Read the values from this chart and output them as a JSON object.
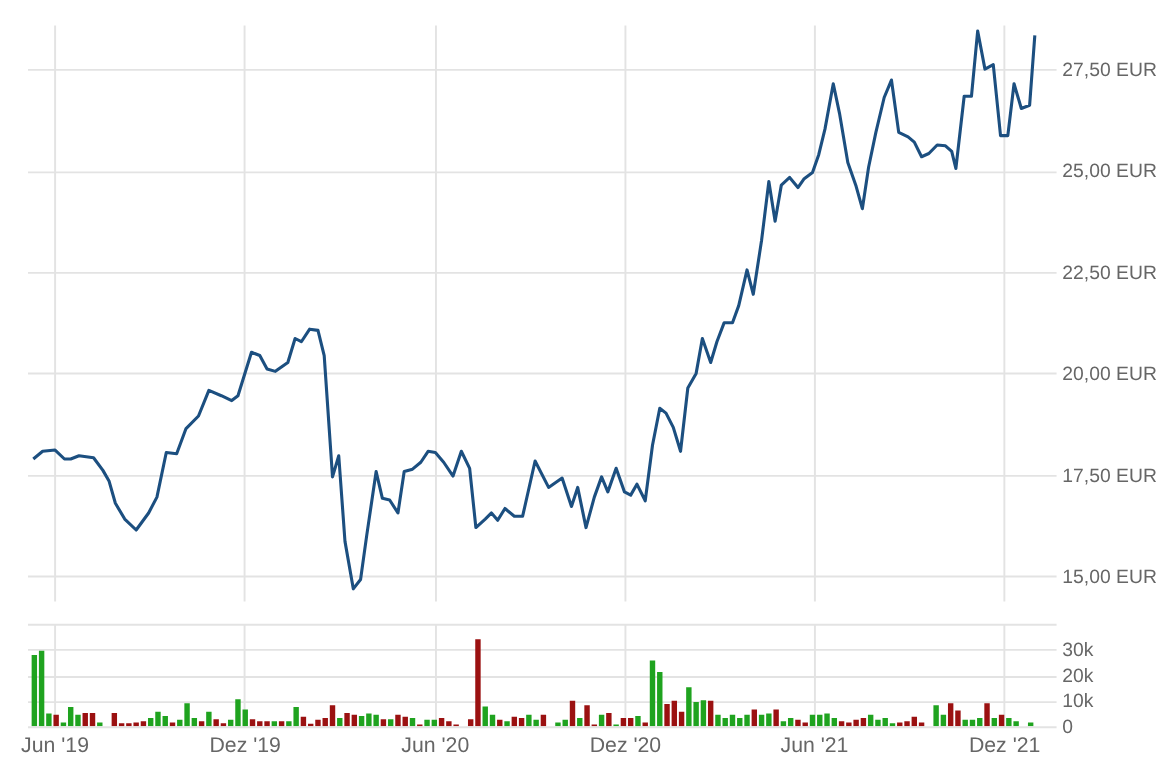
{
  "chart_data": [
    {
      "type": "line",
      "tick_labels": "y",
      "grid": true,
      "xlim": [
        "2019-05-06",
        "2022-01-20"
      ],
      "xticks": [
        {
          "value": "2019-06-01",
          "label": null
        },
        {
          "value": "2019-12-01",
          "label": null
        },
        {
          "value": "2020-06-01",
          "label": null
        },
        {
          "value": "2020-12-01",
          "label": null
        },
        {
          "value": "2021-06-01",
          "label": null
        },
        {
          "value": "2021-12-01",
          "label": null
        }
      ],
      "ylim": [
        14.4,
        28.6
      ],
      "yticks": [
        {
          "value": 15,
          "label": "15,00 EUR"
        },
        {
          "value": 17.5,
          "label": "17,50 EUR"
        },
        {
          "value": 20,
          "label": "20,00 EUR"
        },
        {
          "value": 22.5,
          "label": "22,50 EUR"
        },
        {
          "value": 25,
          "label": "25,00 EUR"
        },
        {
          "value": 27.5,
          "label": "27,50 EUR"
        }
      ],
      "x": [
        "2019-05-12",
        "2019-05-21",
        "2019-06-02",
        "2019-06-11",
        "2019-06-17",
        "2019-06-25",
        "2019-07-09",
        "2019-07-18",
        "2019-07-24",
        "2019-07-30",
        "2019-08-08",
        "2019-08-19",
        "2019-08-31",
        "2019-09-08",
        "2019-09-17",
        "2019-09-27",
        "2019-10-06",
        "2019-10-18",
        "2019-10-28",
        "2019-11-09",
        "2019-11-19",
        "2019-11-25",
        "2019-12-08",
        "2019-12-16",
        "2019-12-23",
        "2019-12-31",
        "2020-01-12",
        "2020-01-19",
        "2020-01-25",
        "2020-02-02",
        "2020-02-10",
        "2020-02-16",
        "2020-02-24",
        "2020-03-01",
        "2020-03-07",
        "2020-03-15",
        "2020-03-22",
        "2020-03-28",
        "2020-04-06",
        "2020-04-12",
        "2020-04-19",
        "2020-04-27",
        "2020-05-03",
        "2020-05-11",
        "2020-05-19",
        "2020-05-26",
        "2020-06-02",
        "2020-06-10",
        "2020-06-19",
        "2020-06-27",
        "2020-07-05",
        "2020-07-11",
        "2020-07-20",
        "2020-07-26",
        "2020-08-01",
        "2020-08-08",
        "2020-08-17",
        "2020-08-25",
        "2020-09-06",
        "2020-09-19",
        "2020-10-02",
        "2020-10-11",
        "2020-10-17",
        "2020-10-25",
        "2020-11-02",
        "2020-11-09",
        "2020-11-15",
        "2020-11-23",
        "2020-12-01",
        "2020-12-07",
        "2020-12-13",
        "2020-12-21",
        "2020-12-28",
        "2021-01-04",
        "2021-01-10",
        "2021-01-17",
        "2021-01-24",
        "2021-01-31",
        "2021-02-08",
        "2021-02-14",
        "2021-02-22",
        "2021-02-28",
        "2021-03-07",
        "2021-03-15",
        "2021-03-21",
        "2021-03-29",
        "2021-04-04",
        "2021-04-12",
        "2021-04-19",
        "2021-04-25",
        "2021-05-01",
        "2021-05-09",
        "2021-05-17",
        "2021-05-23",
        "2021-05-31",
        "2021-06-06",
        "2021-06-12",
        "2021-06-20",
        "2021-06-26",
        "2021-07-04",
        "2021-07-12",
        "2021-07-18",
        "2021-07-24",
        "2021-07-31",
        "2021-08-08",
        "2021-08-15",
        "2021-08-22",
        "2021-08-31",
        "2021-09-06",
        "2021-09-13",
        "2021-09-20",
        "2021-09-28",
        "2021-10-06",
        "2021-10-12",
        "2021-10-16",
        "2021-10-24",
        "2021-10-31",
        "2021-11-06",
        "2021-11-13",
        "2021-11-21",
        "2021-11-28",
        "2021-12-05",
        "2021-12-11",
        "2021-12-18",
        "2021-12-26",
        "2021-12-31"
      ],
      "series": [
        {
          "color": "#1c4f80",
          "values": [
            17.89,
            18.08,
            18.11,
            17.89,
            17.89,
            17.97,
            17.92,
            17.61,
            17.34,
            16.8,
            16.41,
            16.14,
            16.56,
            16.95,
            18.05,
            18.02,
            18.64,
            18.95,
            19.58,
            19.45,
            19.33,
            19.45,
            20.52,
            20.44,
            20.11,
            20.05,
            20.27,
            20.86,
            20.78,
            21.09,
            21.06,
            20.44,
            17.45,
            17.97,
            15.86,
            14.69,
            14.92,
            16.02,
            17.58,
            16.92,
            16.88,
            16.56,
            17.58,
            17.64,
            17.81,
            18.08,
            18.05,
            17.81,
            17.47,
            18.08,
            17.66,
            16.2,
            16.41,
            16.56,
            16.38,
            16.67,
            16.48,
            16.48,
            17.84,
            17.19,
            17.42,
            16.72,
            17.19,
            16.2,
            16.95,
            17.45,
            17.08,
            17.66,
            17.08,
            17.0,
            17.27,
            16.86,
            18.23,
            19.14,
            19.02,
            18.67,
            18.08,
            19.64,
            20.0,
            20.86,
            20.27,
            20.78,
            21.25,
            21.25,
            21.67,
            22.55,
            21.95,
            23.28,
            24.73,
            23.75,
            24.64,
            24.83,
            24.58,
            24.8,
            24.95,
            25.39,
            26.02,
            27.14,
            26.41,
            25.2,
            24.61,
            24.06,
            25.08,
            25.94,
            26.8,
            27.23,
            25.94,
            25.83,
            25.7,
            25.34,
            25.42,
            25.63,
            25.61,
            25.47,
            25.05,
            26.83,
            26.83,
            28.44,
            27.5,
            27.61,
            25.86,
            25.86,
            27.14,
            26.53,
            26.61,
            28.33
          ]
        }
      ]
    },
    {
      "type": "bar",
      "grid": true,
      "xlim": [
        "2019-05-06",
        "2022-01-20"
      ],
      "xticks": [
        {
          "value": "2019-06-01",
          "label": "Jun '19"
        },
        {
          "value": "2019-12-01",
          "label": "Dez '19"
        },
        {
          "value": "2020-06-01",
          "label": "Jun '20"
        },
        {
          "value": "2020-12-01",
          "label": "Dez '20"
        },
        {
          "value": "2021-06-01",
          "label": "Jun '21"
        },
        {
          "value": "2021-12-01",
          "label": "Dez '21"
        }
      ],
      "ylim": [
        0,
        40000
      ],
      "yticks": [
        {
          "value": 0,
          "label": "0"
        },
        {
          "value": 10000,
          "label": "10k"
        },
        {
          "value": 20000,
          "label": "20k"
        },
        {
          "value": 30000,
          "label": "30k"
        },
        {
          "value": 40000,
          "label": null
        }
      ],
      "x": [
        "2019-05-13",
        "2019-05-20",
        "2019-05-27",
        "2019-06-03",
        "2019-06-10",
        "2019-06-17",
        "2019-06-24",
        "2019-07-01",
        "2019-07-08",
        "2019-07-15",
        "2019-07-29",
        "2019-08-05",
        "2019-08-12",
        "2019-08-19",
        "2019-08-26",
        "2019-09-02",
        "2019-09-09",
        "2019-09-16",
        "2019-09-23",
        "2019-09-30",
        "2019-10-07",
        "2019-10-14",
        "2019-10-21",
        "2019-10-28",
        "2019-11-04",
        "2019-11-11",
        "2019-11-18",
        "2019-11-25",
        "2019-12-02",
        "2019-12-09",
        "2019-12-16",
        "2019-12-23",
        "2019-12-30",
        "2020-01-06",
        "2020-01-13",
        "2020-01-20",
        "2020-01-27",
        "2020-02-03",
        "2020-02-10",
        "2020-02-17",
        "2020-02-24",
        "2020-03-02",
        "2020-03-09",
        "2020-03-16",
        "2020-03-23",
        "2020-03-30",
        "2020-04-06",
        "2020-04-13",
        "2020-04-20",
        "2020-04-27",
        "2020-05-04",
        "2020-05-11",
        "2020-05-18",
        "2020-05-25",
        "2020-06-01",
        "2020-06-08",
        "2020-06-15",
        "2020-06-22",
        "2020-07-06",
        "2020-07-13",
        "2020-07-20",
        "2020-07-27",
        "2020-08-03",
        "2020-08-10",
        "2020-08-17",
        "2020-08-24",
        "2020-08-31",
        "2020-09-07",
        "2020-09-14",
        "2020-09-28",
        "2020-10-05",
        "2020-10-12",
        "2020-10-19",
        "2020-10-26",
        "2020-11-02",
        "2020-11-09",
        "2020-11-16",
        "2020-11-23",
        "2020-11-30",
        "2020-12-07",
        "2020-12-14",
        "2020-12-21",
        "2020-12-28",
        "2021-01-04",
        "2021-01-11",
        "2021-01-18",
        "2021-01-25",
        "2021-02-01",
        "2021-02-08",
        "2021-02-15",
        "2021-02-22",
        "2021-03-01",
        "2021-03-08",
        "2021-03-15",
        "2021-03-22",
        "2021-03-29",
        "2021-04-05",
        "2021-04-12",
        "2021-04-19",
        "2021-04-26",
        "2021-05-03",
        "2021-05-10",
        "2021-05-17",
        "2021-05-24",
        "2021-05-31",
        "2021-06-07",
        "2021-06-14",
        "2021-06-21",
        "2021-06-28",
        "2021-07-05",
        "2021-07-12",
        "2021-07-19",
        "2021-07-26",
        "2021-08-02",
        "2021-08-09",
        "2021-08-16",
        "2021-08-23",
        "2021-08-30",
        "2021-09-06",
        "2021-09-13",
        "2021-09-27",
        "2021-10-04",
        "2021-10-11",
        "2021-10-18",
        "2021-10-25",
        "2021-11-01",
        "2021-11-08",
        "2021-11-15",
        "2021-11-22",
        "2021-11-29",
        "2021-12-06",
        "2021-12-13",
        "2021-12-27"
      ],
      "values": [
        27800,
        29500,
        5000,
        4500,
        1500,
        7500,
        4500,
        5200,
        5200,
        1500,
        5200,
        1200,
        1200,
        1500,
        2000,
        3200,
        5700,
        4000,
        1500,
        2500,
        9000,
        3200,
        2000,
        5700,
        2700,
        1200,
        2500,
        10500,
        6500,
        2700,
        2000,
        2000,
        2000,
        2000,
        2000,
        7500,
        3700,
        1000,
        2500,
        3200,
        8200,
        3200,
        5200,
        4500,
        4000,
        5000,
        4500,
        2700,
        2700,
        4500,
        3700,
        3200,
        700,
        2500,
        2500,
        3200,
        2000,
        700,
        2700,
        34000,
        7700,
        4500,
        2500,
        2000,
        3700,
        3200,
        4500,
        2500,
        4500,
        1500,
        2500,
        10000,
        3200,
        8200,
        700,
        4500,
        5200,
        700,
        3200,
        3200,
        4000,
        1500,
        25700,
        21200,
        8700,
        10000,
        5700,
        15200,
        9500,
        10200,
        10000,
        4500,
        3200,
        4500,
        3200,
        4500,
        6500,
        4500,
        5000,
        6500,
        2000,
        3200,
        2500,
        1500,
        4500,
        4500,
        5000,
        3200,
        2000,
        1500,
        2500,
        3200,
        4500,
        2500,
        3200,
        1200,
        1500,
        2000,
        3700,
        1500,
        8200,
        4500,
        9000,
        6200,
        2500,
        2500,
        3200,
        9000,
        3200,
        4500,
        3200,
        2000,
        1500
      ],
      "colors": [
        "#1fa31f",
        "#1fa31f",
        "#1fa31f",
        "#9b1111",
        "#1fa31f",
        "#1fa31f",
        "#1fa31f",
        "#9b1111",
        "#9b1111",
        "#1fa31f",
        "#9b1111",
        "#9b1111",
        "#9b1111",
        "#9b1111",
        "#9b1111",
        "#1fa31f",
        "#1fa31f",
        "#1fa31f",
        "#9b1111",
        "#1fa31f",
        "#1fa31f",
        "#1fa31f",
        "#9b1111",
        "#1fa31f",
        "#9b1111",
        "#9b1111",
        "#1fa31f",
        "#1fa31f",
        "#1fa31f",
        "#9b1111",
        "#9b1111",
        "#9b1111",
        "#1fa31f",
        "#9b1111",
        "#1fa31f",
        "#1fa31f",
        "#9b1111",
        "#9b1111",
        "#9b1111",
        "#9b1111",
        "#9b1111",
        "#1fa31f",
        "#9b1111",
        "#9b1111",
        "#1fa31f",
        "#1fa31f",
        "#1fa31f",
        "#9b1111",
        "#1fa31f",
        "#9b1111",
        "#9b1111",
        "#1fa31f",
        "#9b1111",
        "#1fa31f",
        "#1fa31f",
        "#9b1111",
        "#9b1111",
        "#9b1111",
        "#9b1111",
        "#9b1111",
        "#1fa31f",
        "#1fa31f",
        "#9b1111",
        "#1fa31f",
        "#9b1111",
        "#9b1111",
        "#1fa31f",
        "#1fa31f",
        "#9b1111",
        "#1fa31f",
        "#1fa31f",
        "#9b1111",
        "#1fa31f",
        "#9b1111",
        "#9b1111",
        "#1fa31f",
        "#9b1111",
        "#1fa31f",
        "#9b1111",
        "#9b1111",
        "#1fa31f",
        "#9b1111",
        "#1fa31f",
        "#1fa31f",
        "#9b1111",
        "#9b1111",
        "#9b1111",
        "#1fa31f",
        "#1fa31f",
        "#1fa31f",
        "#9b1111",
        "#1fa31f",
        "#1fa31f",
        "#1fa31f",
        "#1fa31f",
        "#1fa31f",
        "#9b1111",
        "#1fa31f",
        "#1fa31f",
        "#9b1111",
        "#1fa31f",
        "#1fa31f",
        "#9b1111",
        "#9b1111",
        "#1fa31f",
        "#1fa31f",
        "#1fa31f",
        "#1fa31f",
        "#9b1111",
        "#9b1111",
        "#9b1111",
        "#9b1111",
        "#1fa31f",
        "#1fa31f",
        "#1fa31f",
        "#1fa31f",
        "#9b1111",
        "#9b1111",
        "#9b1111",
        "#9b1111",
        "#1fa31f",
        "#1fa31f",
        "#9b1111",
        "#9b1111",
        "#1fa31f",
        "#1fa31f",
        "#1fa31f",
        "#9b1111",
        "#1fa31f",
        "#9b1111",
        "#1fa31f",
        "#1fa31f",
        "#1fa31f"
      ]
    }
  ]
}
